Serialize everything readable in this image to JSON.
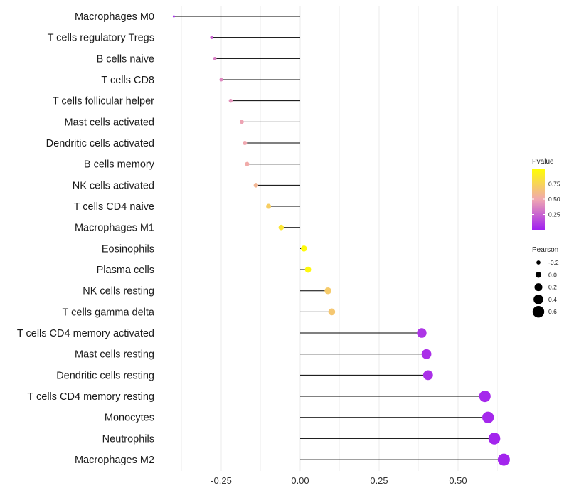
{
  "chart_data": {
    "type": "lollipop",
    "title": "",
    "xlabel": "",
    "ylabel": "",
    "xlim": [
      -0.4,
      0.7
    ],
    "xticks": [
      -0.25,
      0.0,
      0.25,
      0.5
    ],
    "xtick_labels": [
      "-0.25",
      "0.00",
      "0.25",
      "0.50"
    ],
    "grid": true,
    "categories": [
      "Macrophages M0",
      "T cells regulatory  Tregs ",
      "B cells naive",
      "T cells CD8",
      "T cells follicular helper",
      "Mast cells activated",
      "Dendritic cells activated",
      "B cells memory",
      "NK cells activated",
      "T cells CD4 naive",
      "Macrophages M1",
      "Eosinophils",
      "Plasma cells",
      "NK cells resting",
      "T cells gamma delta",
      "T cells CD4 memory activated",
      "Mast cells resting",
      "Dendritic cells resting",
      "T cells CD4 memory resting",
      "Monocytes",
      "Neutrophils",
      "Macrophages M2"
    ],
    "pearson": [
      -0.4,
      -0.28,
      -0.27,
      -0.25,
      -0.22,
      -0.185,
      -0.175,
      -0.168,
      -0.14,
      -0.1,
      -0.06,
      0.012,
      0.025,
      0.088,
      0.1,
      0.385,
      0.4,
      0.405,
      0.585,
      0.595,
      0.615,
      0.645
    ],
    "pvalue": [
      0.02,
      0.25,
      0.35,
      0.38,
      0.42,
      0.48,
      0.5,
      0.52,
      0.58,
      0.72,
      0.85,
      0.97,
      0.96,
      0.7,
      0.68,
      0.08,
      0.06,
      0.06,
      0.03,
      0.03,
      0.02,
      0.02
    ],
    "legend": {
      "color": {
        "title": "Pvalue",
        "labels": [
          "0.75",
          "0.50",
          "0.25"
        ],
        "values": [
          0.75,
          0.5,
          0.25
        ],
        "colors": [
          "#a020f0",
          "#f0a8b0",
          "#ffff00"
        ],
        "position": "right"
      },
      "size": {
        "title": "Pearson",
        "labels": [
          "-0.2",
          "0.0",
          "0.2",
          "0.4",
          "0.6"
        ],
        "values": [
          -0.2,
          0.0,
          0.2,
          0.4,
          0.6
        ],
        "position": "right"
      }
    }
  }
}
